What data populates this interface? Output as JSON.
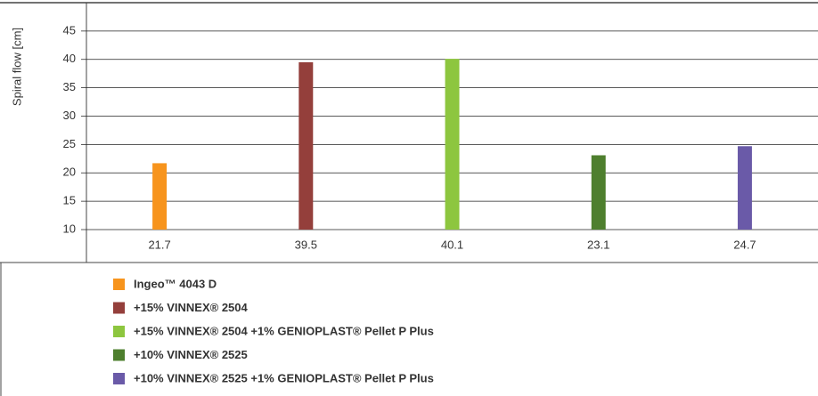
{
  "chart_data": {
    "type": "bar",
    "ylabel": "Spiral flow [cm]",
    "categories": [
      "Ingeo™ 4043 D",
      "+15% VINNEX® 2504",
      "+15% VINNEX® 2504 +1% GENIOPLAST® Pellet P Plus",
      "+10% VINNEX® 2525",
      "+10% VINNEX® 2525 +1% GENIOPLAST® Pellet P Plus"
    ],
    "values": [
      21.7,
      39.5,
      40.1,
      23.1,
      24.7
    ],
    "colors": [
      "#f7941d",
      "#943f3b",
      "#8dc63f",
      "#4e7f2e",
      "#6a5aa8"
    ],
    "ylim": [
      10,
      50
    ],
    "yticks": [
      10,
      15,
      20,
      25,
      30,
      35,
      40,
      45
    ],
    "grid": true
  }
}
